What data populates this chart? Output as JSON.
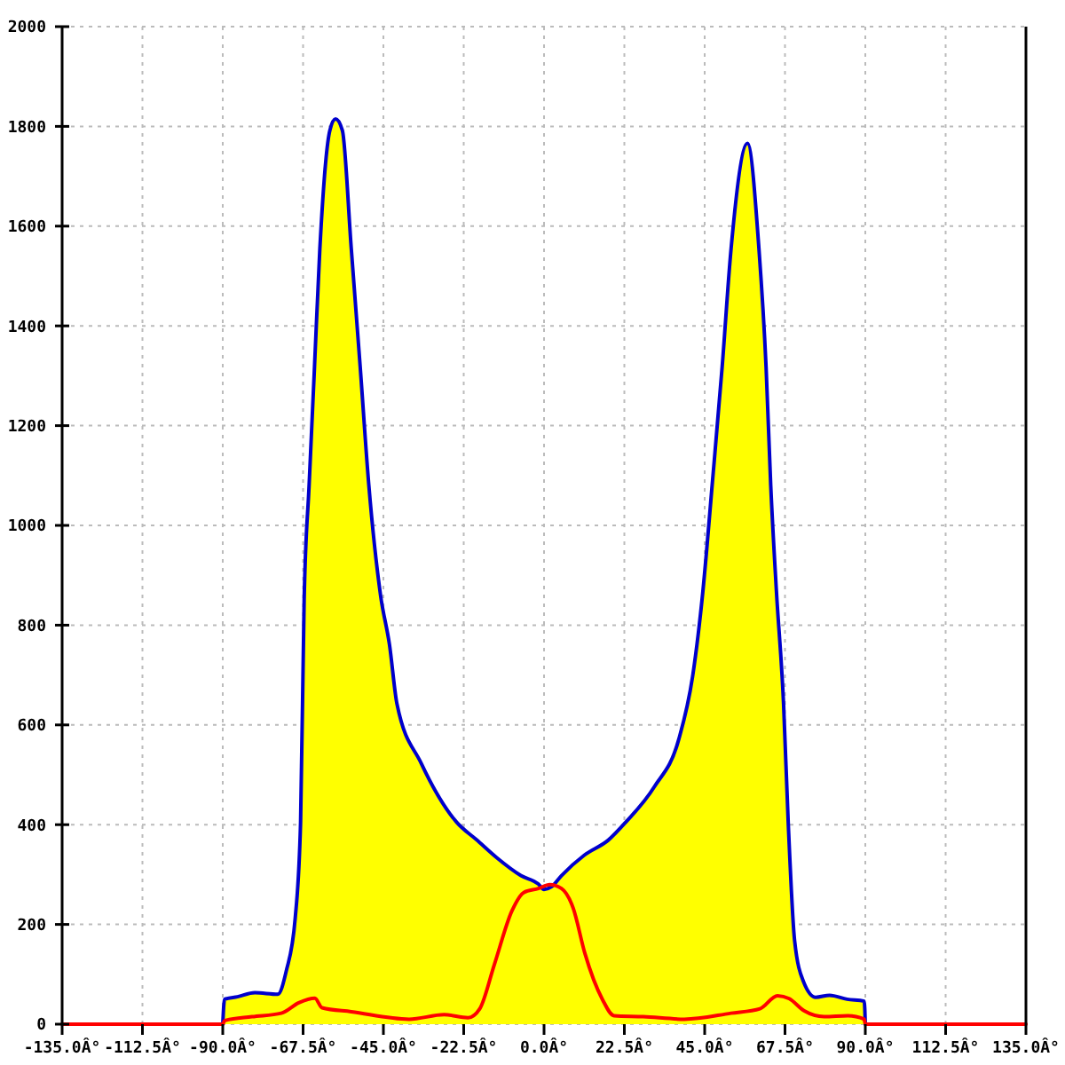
{
  "chart_data": {
    "type": "area",
    "xlim": [
      -135,
      135
    ],
    "ylim": [
      0,
      2000
    ],
    "xticks": [
      {
        "value": -135,
        "label": "-135.0Â°"
      },
      {
        "value": -112.5,
        "label": "-112.5Â°"
      },
      {
        "value": -90,
        "label": "-90.0Â°"
      },
      {
        "value": -67.5,
        "label": "-67.5Â°"
      },
      {
        "value": -45,
        "label": "-45.0Â°"
      },
      {
        "value": -22.5,
        "label": "-22.5Â°"
      },
      {
        "value": 0,
        "label": "0.0Â°"
      },
      {
        "value": 22.5,
        "label": "22.5Â°"
      },
      {
        "value": 45,
        "label": "45.0Â°"
      },
      {
        "value": 67.5,
        "label": "67.5Â°"
      },
      {
        "value": 90,
        "label": "90.0Â°"
      },
      {
        "value": 112.5,
        "label": "112.5Â°"
      },
      {
        "value": 135,
        "label": "135.0Â°"
      }
    ],
    "yticks": [
      0,
      200,
      400,
      600,
      800,
      1000,
      1200,
      1400,
      1600,
      1800,
      2000
    ],
    "grid": true,
    "series": [
      {
        "color": "#ffff00",
        "x": [
          -89.5,
          -85.9,
          -81,
          -74.6,
          -72.2,
          -69.7,
          -68.2,
          -67.2,
          -65.8,
          -64.3,
          -62.8,
          -60,
          -58.4,
          -56.5,
          -54,
          -51.5,
          -49.1,
          -45.8,
          -43.3,
          -41.2,
          -34.4,
          -24.5,
          -18.8,
          -13.3,
          -6.5,
          -1.6,
          0,
          2,
          4.9,
          11.3,
          18,
          22.9,
          30.9,
          37.7,
          41.7,
          44.5,
          47.1,
          49.9,
          52.4,
          57,
          60.2,
          62.2,
          63.5,
          65.1,
          67.1,
          68.4,
          70.2,
          72.7,
          76.1,
          80,
          84.9,
          89.7
        ],
        "values": [
          50,
          55,
          63,
          60,
          107,
          213,
          405,
          850,
          1082,
          1318,
          1555,
          1792,
          1815,
          1792,
          1555,
          1318,
          1082,
          860,
          761,
          642,
          523,
          405,
          369,
          334,
          298,
          281,
          270,
          275,
          298,
          339,
          369,
          405,
          476,
          570,
          701,
          868,
          1081,
          1318,
          1555,
          1766,
          1555,
          1318,
          1081,
          868,
          642,
          405,
          167,
          85,
          54,
          58,
          50,
          46
        ]
      },
      {
        "type": "line",
        "color": "#0000cc",
        "x": [
          -90,
          -89.5,
          -85.9,
          -81,
          -74.6,
          -72.2,
          -69.7,
          -68.2,
          -67.2,
          -65.8,
          -64.3,
          -62.8,
          -60,
          -58.4,
          -56.5,
          -54,
          -51.5,
          -49.1,
          -45.8,
          -43.3,
          -41.2,
          -34.4,
          -24.5,
          -18.8,
          -13.3,
          -6.5,
          -1.6,
          0,
          2,
          4.9,
          11.3,
          18,
          22.9,
          30.9,
          37.7,
          41.7,
          44.5,
          47.1,
          49.9,
          52.4,
          57,
          60.2,
          62.2,
          63.5,
          65.1,
          67.1,
          68.4,
          70.2,
          72.7,
          76.1,
          80,
          84.9,
          89.7,
          90
        ],
        "values": [
          0,
          50,
          55,
          63,
          60,
          107,
          213,
          405,
          850,
          1082,
          1318,
          1555,
          1792,
          1815,
          1792,
          1555,
          1318,
          1082,
          860,
          761,
          642,
          523,
          405,
          369,
          334,
          298,
          281,
          270,
          275,
          298,
          339,
          369,
          405,
          476,
          570,
          701,
          868,
          1081,
          1318,
          1555,
          1766,
          1555,
          1318,
          1081,
          868,
          642,
          405,
          167,
          85,
          54,
          58,
          50,
          46,
          0
        ]
      },
      {
        "type": "line",
        "color": "#ff0000",
        "x": [
          -135,
          -90,
          -89.5,
          -81.8,
          -73.6,
          -68.7,
          -64.2,
          -62.2,
          -54,
          -37.8,
          -28,
          -21.3,
          -18,
          -13.9,
          -9,
          -5.7,
          -1.6,
          1.6,
          4.9,
          8.2,
          11.4,
          16.4,
          19.6,
          27.8,
          39.3,
          52.4,
          60.5,
          65.4,
          68.7,
          72.8,
          78.5,
          85.1,
          89.7,
          90,
          135
        ],
        "values": [
          0,
          0,
          7,
          15,
          22,
          43,
          52,
          33,
          25,
          10,
          19,
          13,
          31,
          120,
          227,
          264,
          272,
          280,
          272,
          232,
          143,
          49,
          17,
          15,
          10,
          22,
          31,
          57,
          51,
          27,
          15,
          17,
          10,
          0,
          0
        ]
      }
    ]
  }
}
